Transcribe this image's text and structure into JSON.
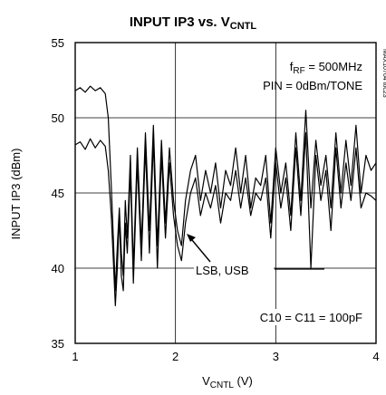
{
  "chart_data": {
    "type": "line",
    "title": "INPUT IP3 vs. V",
    "title_sub": "CNTL",
    "xlabel": "V",
    "xlabel_sub": "CNTL",
    "xlabel_unit": " (V)",
    "ylabel": "INPUT IP3 (dBm)",
    "xlim": [
      1,
      4
    ],
    "ylim": [
      35,
      55
    ],
    "x_ticks": [
      "1",
      "2",
      "3",
      "4"
    ],
    "y_ticks": [
      "35",
      "40",
      "45",
      "50",
      "55"
    ],
    "grid": true,
    "annotations": {
      "frf_prefix": "f",
      "frf_sub": "RF",
      "frf_value": " = 500MHz",
      "pin": "PIN = 0dBm/TONE",
      "lsb_usb": "LSB, USB",
      "cap": "C10 = C11 = 100pF",
      "side_id": "MAX10704 toc23"
    },
    "series": [
      {
        "x": [
          1.0,
          1.05,
          1.1,
          1.15,
          1.2,
          1.25,
          1.3,
          1.33,
          1.36,
          1.38,
          1.4,
          1.42,
          1.44,
          1.46,
          1.48,
          1.5,
          1.52,
          1.55,
          1.58,
          1.62,
          1.66,
          1.7,
          1.74,
          1.78,
          1.82,
          1.86,
          1.9,
          1.94,
          1.98,
          2.02,
          2.06,
          2.1,
          2.15,
          2.2,
          2.25,
          2.3,
          2.35,
          2.4,
          2.45,
          2.5,
          2.55,
          2.6,
          2.65,
          2.7,
          2.75,
          2.8,
          2.85,
          2.9,
          2.95,
          3.0,
          3.05,
          3.1,
          3.15,
          3.2,
          3.25,
          3.3,
          3.35,
          3.4,
          3.45,
          3.5,
          3.55,
          3.6,
          3.65,
          3.7,
          3.75,
          3.8,
          3.85,
          3.9,
          3.95,
          4.0
        ],
        "values": [
          51.8,
          52.0,
          51.7,
          52.1,
          51.8,
          52.0,
          51.6,
          50.0,
          45.5,
          42.0,
          38.5,
          41.5,
          44.0,
          41.0,
          39.5,
          44.5,
          42.0,
          47.5,
          40.0,
          48.0,
          41.5,
          49.0,
          42.5,
          49.5,
          41.5,
          48.5,
          43.0,
          48.0,
          44.5,
          42.5,
          41.5,
          44.5,
          46.5,
          47.5,
          44.5,
          46.5,
          45.0,
          47.0,
          44.0,
          46.5,
          45.5,
          48.0,
          45.0,
          47.5,
          44.0,
          46.0,
          45.5,
          47.5,
          43.0,
          48.0,
          45.0,
          47.0,
          43.5,
          49.0,
          44.5,
          50.5,
          44.0,
          48.5,
          45.5,
          47.5,
          44.0,
          49.0,
          45.0,
          48.5,
          45.5,
          49.5,
          45.0,
          47.5,
          46.5,
          47.0
        ]
      },
      {
        "x": [
          1.0,
          1.05,
          1.1,
          1.15,
          1.2,
          1.25,
          1.3,
          1.33,
          1.36,
          1.38,
          1.4,
          1.42,
          1.44,
          1.46,
          1.48,
          1.5,
          1.52,
          1.55,
          1.58,
          1.62,
          1.66,
          1.7,
          1.74,
          1.78,
          1.82,
          1.86,
          1.9,
          1.94,
          1.98,
          2.02,
          2.06,
          2.1,
          2.15,
          2.2,
          2.25,
          2.3,
          2.35,
          2.4,
          2.45,
          2.5,
          2.55,
          2.6,
          2.65,
          2.7,
          2.75,
          2.8,
          2.85,
          2.9,
          2.95,
          3.0,
          3.05,
          3.1,
          3.15,
          3.2,
          3.25,
          3.3,
          3.35,
          3.4,
          3.45,
          3.5,
          3.55,
          3.6,
          3.65,
          3.7,
          3.75,
          3.8,
          3.85,
          3.9,
          3.95,
          4.0
        ],
        "values": [
          48.2,
          48.4,
          47.9,
          48.6,
          48.0,
          48.5,
          48.1,
          46.5,
          43.5,
          40.5,
          37.5,
          40.0,
          43.5,
          39.5,
          38.5,
          43.0,
          41.0,
          46.5,
          39.0,
          47.0,
          40.5,
          48.0,
          41.0,
          48.5,
          40.0,
          47.5,
          42.0,
          47.0,
          43.5,
          41.5,
          40.5,
          43.0,
          45.0,
          46.0,
          43.5,
          45.0,
          44.0,
          45.5,
          43.0,
          45.0,
          44.5,
          46.5,
          44.0,
          46.0,
          43.5,
          45.0,
          44.5,
          46.0,
          42.0,
          47.0,
          44.0,
          46.0,
          42.5,
          48.0,
          43.5,
          49.0,
          40.0,
          47.5,
          44.5,
          46.5,
          42.5,
          48.0,
          44.0,
          47.0,
          44.5,
          48.0,
          44.0,
          45.0,
          44.8,
          44.5
        ]
      }
    ]
  }
}
